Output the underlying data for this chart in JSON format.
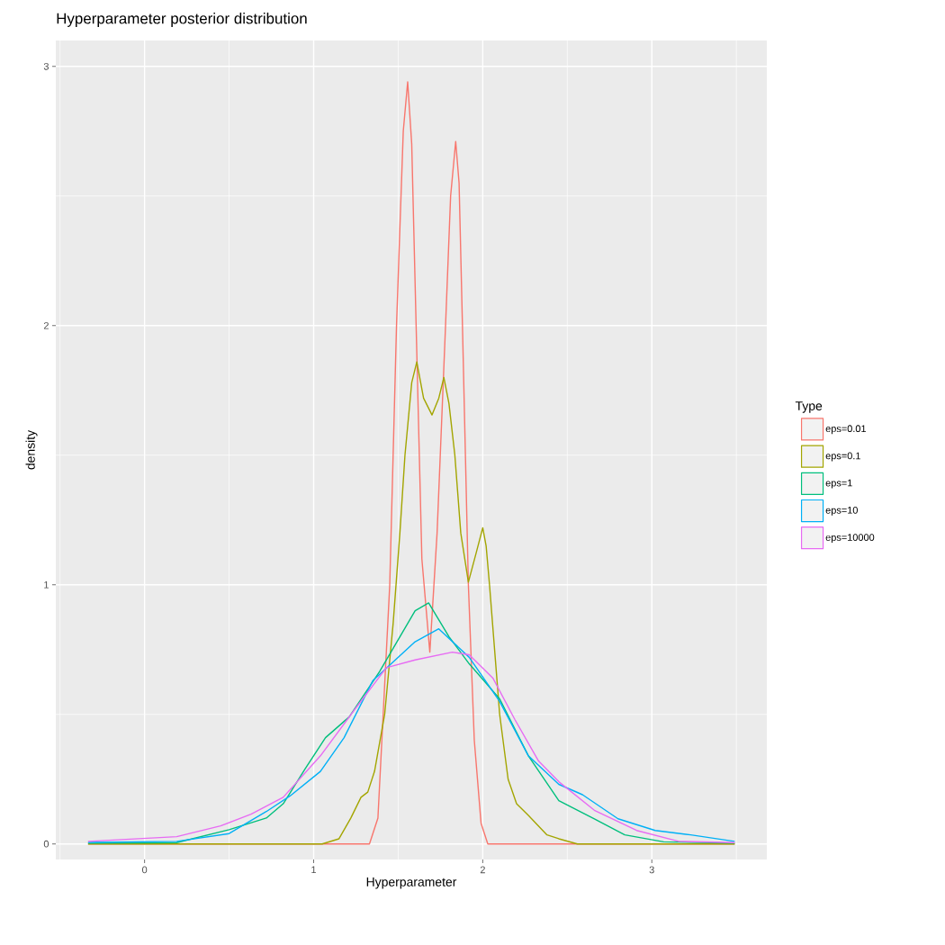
{
  "chart_data": {
    "type": "line",
    "title": "Hyperparameter posterior distribution",
    "xlabel": "Hyperparameter",
    "ylabel": "density",
    "legend_title": "Type",
    "xlim": [
      -0.525,
      3.68
    ],
    "ylim": [
      -0.06,
      3.1
    ],
    "xticks": [
      0,
      1,
      2,
      3
    ],
    "yticks": [
      0,
      1,
      2,
      3
    ],
    "grid": true,
    "legend": "right",
    "marker": "none",
    "line_style": "solid",
    "series": [
      {
        "name": "eps=0.01",
        "color": "#f8766d",
        "x": [
          -0.334,
          1.33,
          1.38,
          1.45,
          1.49,
          1.53,
          1.556,
          1.58,
          1.606,
          1.64,
          1.687,
          1.73,
          1.78,
          1.81,
          1.84,
          1.86,
          1.88,
          1.915,
          1.95,
          1.99,
          2.03,
          3.49
        ],
        "values": [
          0,
          0,
          0.1,
          1.0,
          2.0,
          2.75,
          2.94,
          2.7,
          2.0,
          1.1,
          0.74,
          1.2,
          2.0,
          2.5,
          2.71,
          2.55,
          2.0,
          1.0,
          0.4,
          0.08,
          0,
          0
        ]
      },
      {
        "name": "eps=0.1",
        "color": "#a3a500",
        "x": [
          -0.334,
          1.05,
          1.15,
          1.22,
          1.28,
          1.32,
          1.36,
          1.42,
          1.47,
          1.51,
          1.54,
          1.58,
          1.61,
          1.65,
          1.7,
          1.74,
          1.77,
          1.8,
          1.835,
          1.87,
          1.915,
          1.96,
          2.0,
          2.02,
          2.04,
          2.07,
          2.1,
          2.15,
          2.2,
          2.27,
          2.38,
          2.45,
          2.56,
          3.49
        ],
        "values": [
          0,
          0,
          0.02,
          0.1,
          0.18,
          0.2,
          0.28,
          0.5,
          0.85,
          1.2,
          1.5,
          1.78,
          1.86,
          1.72,
          1.655,
          1.72,
          1.8,
          1.7,
          1.5,
          1.2,
          1.01,
          1.12,
          1.22,
          1.15,
          1.0,
          0.75,
          0.5,
          0.25,
          0.155,
          0.11,
          0.035,
          0.02,
          0,
          0
        ]
      },
      {
        "name": "eps=1",
        "color": "#00bf7d",
        "x": [
          -0.334,
          0.19,
          0.5,
          0.72,
          0.82,
          0.95,
          1.07,
          1.21,
          1.39,
          1.6,
          1.68,
          1.8,
          1.92,
          2.1,
          2.27,
          2.45,
          2.66,
          2.84,
          3.07,
          3.49
        ],
        "values": [
          0.003,
          0.005,
          0.055,
          0.1,
          0.155,
          0.29,
          0.41,
          0.49,
          0.665,
          0.9,
          0.93,
          0.8,
          0.695,
          0.56,
          0.34,
          0.167,
          0.097,
          0.035,
          0.008,
          0.003
        ]
      },
      {
        "name": "eps=10",
        "color": "#00b0f6",
        "x": [
          -0.334,
          0.19,
          0.5,
          0.72,
          0.86,
          1.04,
          1.18,
          1.35,
          1.6,
          1.74,
          1.92,
          2.1,
          2.27,
          2.45,
          2.59,
          2.8,
          3.02,
          3.23,
          3.49
        ],
        "values": [
          0.006,
          0.01,
          0.04,
          0.125,
          0.185,
          0.28,
          0.41,
          0.63,
          0.78,
          0.83,
          0.72,
          0.55,
          0.34,
          0.23,
          0.19,
          0.097,
          0.052,
          0.035,
          0.01
        ]
      },
      {
        "name": "eps=10000",
        "color": "#e76bf3",
        "x": [
          -0.334,
          0.19,
          0.45,
          0.63,
          0.82,
          1.04,
          1.25,
          1.43,
          1.6,
          1.82,
          1.92,
          2.06,
          2.19,
          2.33,
          2.45,
          2.66,
          2.91,
          3.16,
          3.49
        ],
        "values": [
          0.01,
          0.028,
          0.07,
          0.115,
          0.18,
          0.34,
          0.525,
          0.68,
          0.71,
          0.74,
          0.73,
          0.64,
          0.48,
          0.32,
          0.24,
          0.13,
          0.052,
          0.01,
          0.005
        ]
      }
    ]
  }
}
